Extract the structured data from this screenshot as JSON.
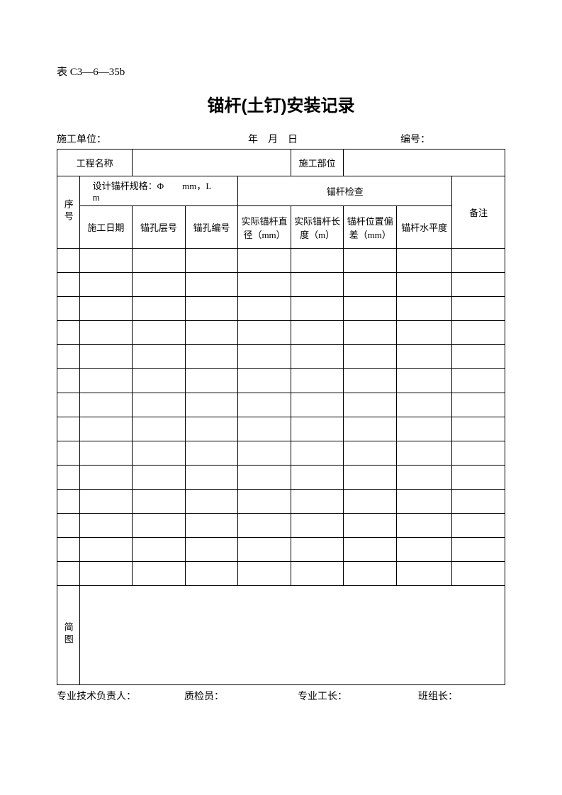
{
  "form_code": "表 C3—6—35b",
  "title": "锚杆(土钉)安装记录",
  "meta": {
    "unit_label": "施工单位：",
    "date_text": "年 月 日",
    "no_label": "编号："
  },
  "header": {
    "project_name": "工程名称",
    "construction_part": "施工部位",
    "seq": "序号",
    "spec_text": "设计锚杆规格：Φ  mm，L  m",
    "inspection": "锚杆检查",
    "remark": "备注",
    "date": "施工日期",
    "layer_no": "锚孔层号",
    "hole_no": "锚孔编号",
    "actual_dia": "实际锚杆直径（mm）",
    "actual_len": "实际锚杆长度（m）",
    "pos_dev": "锚杆位置偏差（mm）",
    "level": "锚杆水平度",
    "sketch": "简图"
  },
  "data_rows": 14,
  "signatures": {
    "tech": "专业技术负责人：",
    "qc": "质检员：",
    "foreman": "专业工长：",
    "team": "班组长："
  },
  "columns": {
    "widths_pct": [
      5,
      11.8,
      11.8,
      11.8,
      11.8,
      11.8,
      11.8,
      12.4,
      11.8
    ]
  }
}
